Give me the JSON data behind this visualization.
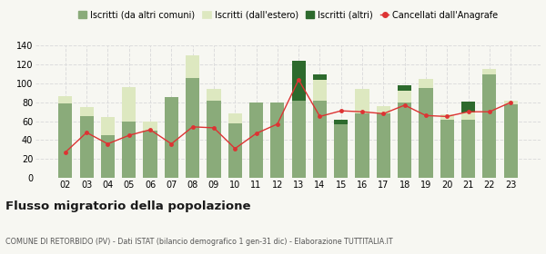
{
  "years": [
    "02",
    "03",
    "04",
    "05",
    "06",
    "07",
    "08",
    "09",
    "10",
    "11",
    "12",
    "13",
    "14",
    "15",
    "16",
    "17",
    "18",
    "19",
    "20",
    "21",
    "22",
    "23"
  ],
  "iscritti_comuni": [
    79,
    65,
    45,
    60,
    50,
    86,
    106,
    82,
    58,
    80,
    80,
    82,
    82,
    57,
    68,
    68,
    80,
    95,
    62,
    62,
    110,
    78
  ],
  "iscritti_estero": [
    8,
    10,
    19,
    36,
    10,
    0,
    24,
    12,
    10,
    0,
    0,
    0,
    22,
    0,
    26,
    8,
    12,
    10,
    5,
    7,
    5,
    4
  ],
  "iscritti_altri": [
    0,
    0,
    0,
    0,
    0,
    0,
    0,
    0,
    0,
    0,
    0,
    42,
    6,
    5,
    0,
    0,
    6,
    0,
    0,
    12,
    0,
    0
  ],
  "cancellati": [
    27,
    48,
    36,
    45,
    51,
    36,
    54,
    53,
    31,
    47,
    57,
    104,
    65,
    71,
    70,
    68,
    77,
    66,
    65,
    70,
    70,
    80
  ],
  "color_comuni": "#8aab7a",
  "color_estero": "#dde8c0",
  "color_altri": "#2d6a2d",
  "color_cancellati": "#dd3333",
  "color_line": "#dd3333",
  "grid_color": "#dddddd",
  "ylim": [
    0,
    140
  ],
  "yticks": [
    0,
    20,
    40,
    60,
    80,
    100,
    120,
    140
  ],
  "title": "Flusso migratorio della popolazione",
  "subtitle": "COMUNE DI RETORBIDO (PV) - Dati ISTAT (bilancio demografico 1 gen-31 dic) - Elaborazione TUTTITALIA.IT",
  "legend_labels": [
    "Iscritti (da altri comuni)",
    "Iscritti (dall'estero)",
    "Iscritti (altri)",
    "Cancellati dall'Anagrafe"
  ],
  "bg_color": "#f7f7f2"
}
